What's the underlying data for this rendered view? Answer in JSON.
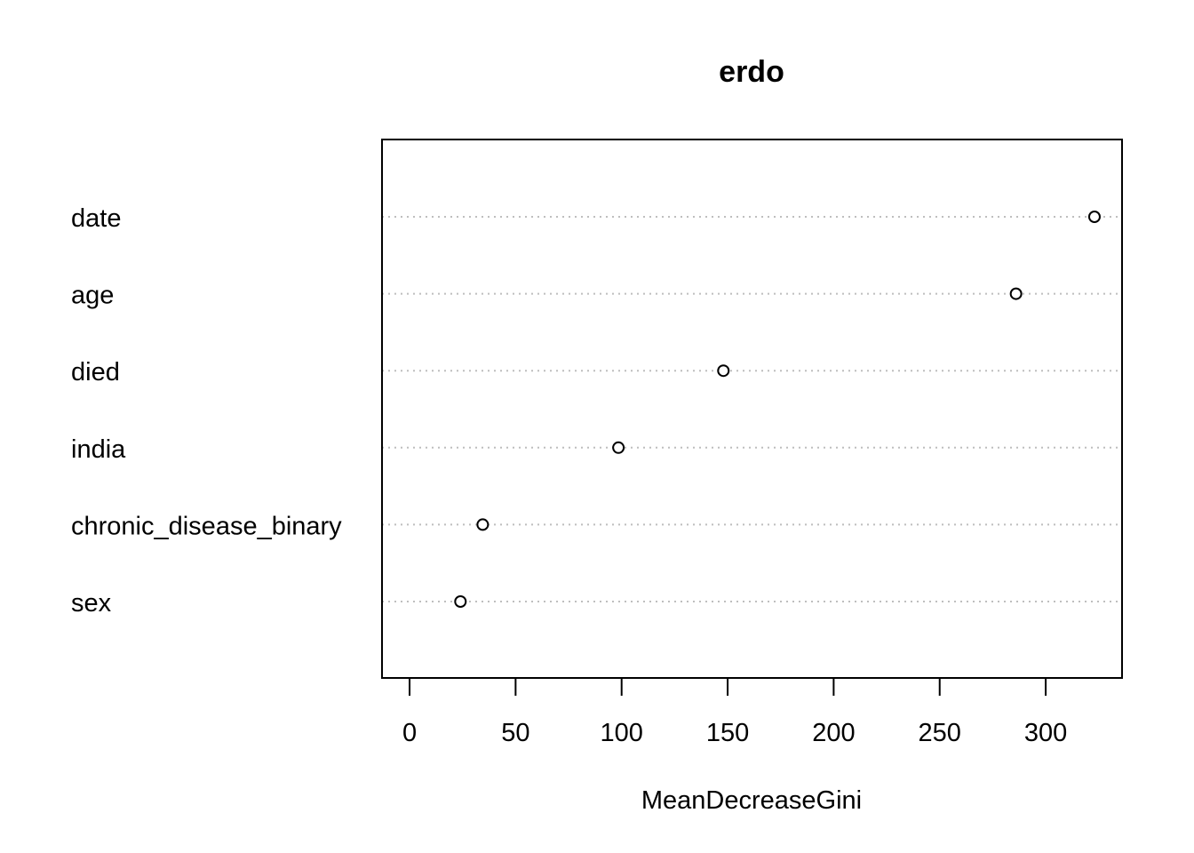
{
  "chart_data": {
    "type": "scatter",
    "title": "erdo",
    "xlabel": "MeanDecreaseGini",
    "ylabel": "",
    "xlim": [
      -13,
      336
    ],
    "xticks": [
      0,
      50,
      100,
      150,
      200,
      250,
      300
    ],
    "grid": "horizontal-dotted",
    "marker": "open-circle",
    "points": [
      {
        "label": "date",
        "value": 323
      },
      {
        "label": "age",
        "value": 286
      },
      {
        "label": "died",
        "value": 148
      },
      {
        "label": "india",
        "value": 98.5
      },
      {
        "label": "chronic_disease_binary",
        "value": 34.5
      },
      {
        "label": "sex",
        "value": 24
      }
    ]
  }
}
